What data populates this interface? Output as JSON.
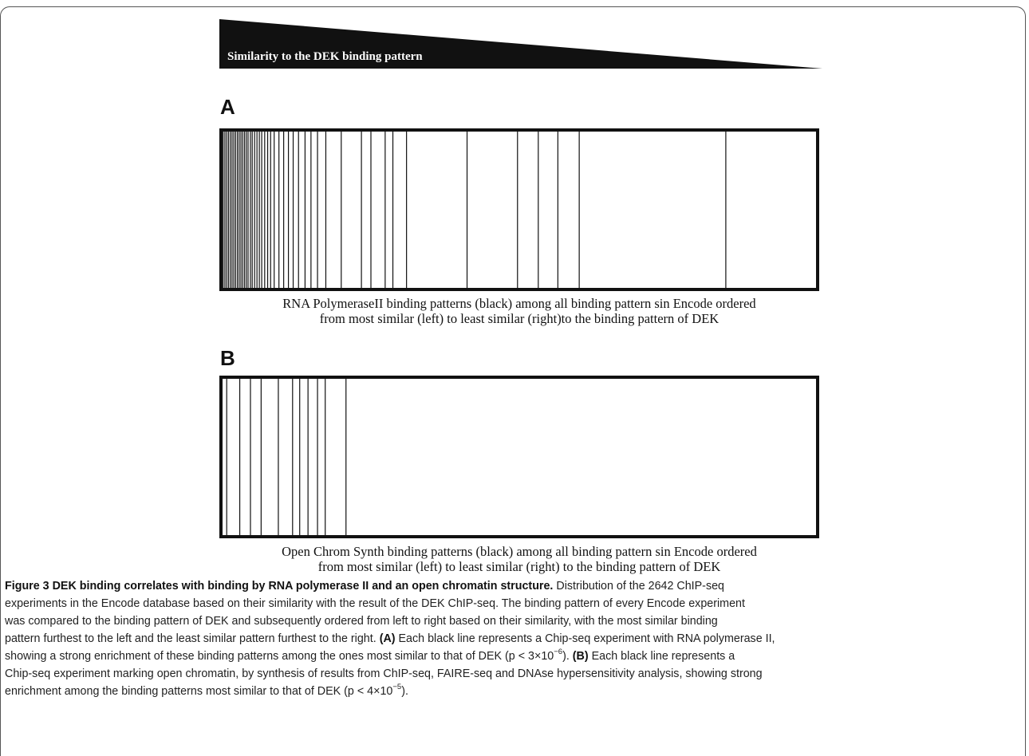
{
  "wedge": {
    "label": "Similarity to the DEK binding pattern"
  },
  "panel_a": {
    "label": "A",
    "caption_lines": [
      "RNA PolymeraseII binding patterns (black) among all binding pattern sin Encode ordered",
      "from most similar (left) to least similar (right)to the binding pattern of DEK"
    ]
  },
  "panel_b": {
    "label": "B",
    "caption_lines": [
      "Open Chrom Synth binding patterns (black) among all binding pattern sin Encode ordered",
      "from most similar (left) to least similar (right) to the binding pattern of DEK"
    ]
  },
  "caption": {
    "title": "Figure 3 DEK binding correlates with binding by RNA polymerase II and an open chromatin structure.",
    "line1_rest": " Distribution of the 2642 ChIP-seq",
    "line2": "experiments in the Encode database based on their similarity with the result of the DEK ChIP-seq. The binding pattern of every Encode experiment",
    "line3": "was compared to the binding pattern of DEK and subsequently ordered from left to right based on their similarity, with the most similar binding",
    "line4": "pattern furthest to the left and the least similar pattern furthest to the right.",
    "tag_a": "(A)",
    "line5_rest": " Each black line represents a Chip-seq experiment with RNA polymerase II,",
    "line6_pre": "showing a strong enrichment of these binding patterns among the ones most similar to that of DEK (p < 3×10",
    "line6_exp": "−6",
    "line6_post": ").",
    "tag_b": "(B)",
    "line6_rest": " Each black line represents a",
    "line7": "Chip-seq experiment marking open chromatin, by synthesis of results from ChIP-seq, FAIRE-seq and DNAse hypersensitivity analysis, showing strong",
    "line8_pre": "enrichment among the binding patterns most similar to that of DEK (p < 4×10",
    "line8_exp": "−5",
    "line8_post": ")."
  },
  "chart_data": [
    {
      "type": "barcode",
      "panel": "A",
      "x_range": [
        0,
        1
      ],
      "positions": [
        0.001,
        0.004,
        0.007,
        0.01,
        0.013,
        0.016,
        0.019,
        0.022,
        0.025,
        0.028,
        0.031,
        0.034,
        0.037,
        0.04,
        0.043,
        0.047,
        0.05,
        0.054,
        0.058,
        0.062,
        0.066,
        0.071,
        0.076,
        0.081,
        0.087,
        0.095,
        0.103,
        0.111,
        0.119,
        0.128,
        0.139,
        0.149,
        0.16,
        0.174,
        0.2,
        0.234,
        0.25,
        0.274,
        0.287,
        0.31,
        0.412,
        0.497,
        0.532,
        0.565,
        0.601,
        0.848
      ]
    },
    {
      "type": "barcode",
      "panel": "B",
      "x_range": [
        0,
        1
      ],
      "positions": [
        0.007,
        0.029,
        0.047,
        0.065,
        0.094,
        0.118,
        0.13,
        0.144,
        0.16,
        0.173,
        0.208
      ]
    }
  ]
}
